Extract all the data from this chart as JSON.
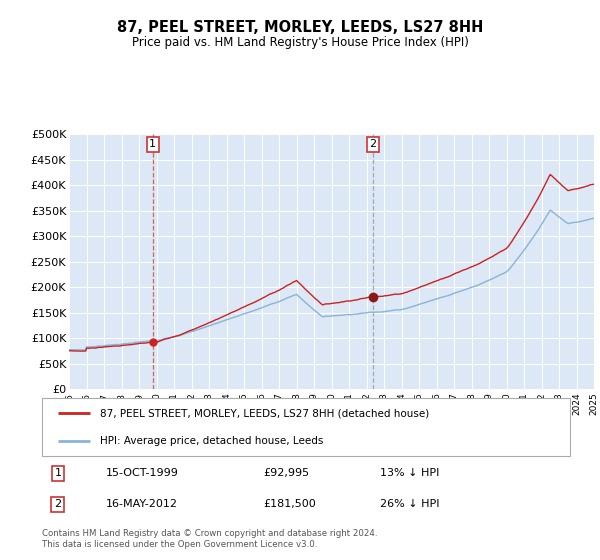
{
  "title": "87, PEEL STREET, MORLEY, LEEDS, LS27 8HH",
  "subtitle": "Price paid vs. HM Land Registry's House Price Index (HPI)",
  "legend_label_red": "87, PEEL STREET, MORLEY, LEEDS, LS27 8HH (detached house)",
  "legend_label_blue": "HPI: Average price, detached house, Leeds",
  "transaction1_date": "15-OCT-1999",
  "transaction1_price": "£92,995",
  "transaction1_hpi": "13% ↓ HPI",
  "transaction2_date": "16-MAY-2012",
  "transaction2_price": "£181,500",
  "transaction2_hpi": "26% ↓ HPI",
  "footer": "Contains HM Land Registry data © Crown copyright and database right 2024.\nThis data is licensed under the Open Government Licence v3.0.",
  "ylim": [
    0,
    500000
  ],
  "yticks": [
    0,
    50000,
    100000,
    150000,
    200000,
    250000,
    300000,
    350000,
    400000,
    450000,
    500000
  ],
  "year_start": 1995,
  "year_end": 2025,
  "transaction1_year": 1999.79,
  "transaction2_year": 2012.37,
  "transaction1_price_val": 92995,
  "transaction2_price_val": 181500,
  "plot_bg_color": "#dce8f5",
  "vline1_color": "#cc3333",
  "vline2_color": "#aaaaaa"
}
